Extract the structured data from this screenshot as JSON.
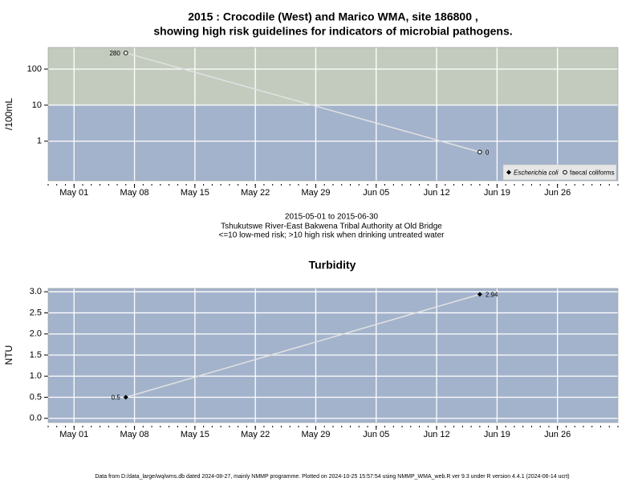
{
  "chart_data": [
    {
      "type": "line",
      "title": [
        "2015 : Crocodile (West) and Marico WMA, site 186800 ,",
        "showing high risk guidelines for indicators of microbial pathogens."
      ],
      "ylabel": "/100mL",
      "notes": [
        "2015-05-01 to 2015-06-30",
        "Tshukutswe River-East Bakwena Tribal Authority at Old Bridge",
        "<=10 low-med risk; >10 high risk when drinking untreated water"
      ],
      "x": [
        "2015-05-07",
        "2015-06-17"
      ],
      "xlim": [
        "2015-04-28",
        "2015-07-03"
      ],
      "xticks": [
        {
          "value": "2015-05-01",
          "label": "May 01"
        },
        {
          "value": "2015-05-08",
          "label": "May 08"
        },
        {
          "value": "2015-05-15",
          "label": "May 15"
        },
        {
          "value": "2015-05-22",
          "label": "May 22"
        },
        {
          "value": "2015-05-29",
          "label": "May 29"
        },
        {
          "value": "2015-06-05",
          "label": "Jun 05"
        },
        {
          "value": "2015-06-12",
          "label": "Jun 12"
        },
        {
          "value": "2015-06-19",
          "label": "Jun 19"
        },
        {
          "value": "2015-06-26",
          "label": "Jun 26"
        }
      ],
      "log_scale": true,
      "ylim": [
        0.08,
        400
      ],
      "yticks": [
        1,
        10,
        100
      ],
      "grid": true,
      "background_color": "#a3b3cc",
      "high_risk_color": "#c3cbbf",
      "risk_threshold": 10,
      "line_color": "#e2e2e2",
      "legend": "bottom-right",
      "series": [
        {
          "name": "Escherichia coli",
          "marker": "diamond",
          "color": "#000000",
          "values": [
            null,
            null
          ]
        },
        {
          "name": "faecal coliforms",
          "marker": "circle",
          "color": "#000000",
          "values": [
            280,
            0.5
          ],
          "value_labels": [
            "280",
            "0"
          ]
        }
      ]
    },
    {
      "type": "line",
      "title": "Turbidity",
      "ylabel": "NTU",
      "x": [
        "2015-05-07",
        "2015-06-17"
      ],
      "xlim": [
        "2015-04-28",
        "2015-07-03"
      ],
      "xticks": [
        {
          "value": "2015-05-01",
          "label": "May 01"
        },
        {
          "value": "2015-05-08",
          "label": "May 08"
        },
        {
          "value": "2015-05-15",
          "label": "May 15"
        },
        {
          "value": "2015-05-22",
          "label": "May 22"
        },
        {
          "value": "2015-05-29",
          "label": "May 29"
        },
        {
          "value": "2015-06-05",
          "label": "Jun 05"
        },
        {
          "value": "2015-06-12",
          "label": "Jun 12"
        },
        {
          "value": "2015-06-19",
          "label": "Jun 19"
        },
        {
          "value": "2015-06-26",
          "label": "Jun 26"
        }
      ],
      "log_scale": false,
      "ylim": [
        -0.1,
        3.08
      ],
      "yticks": [
        {
          "value": 0,
          "label": "0.0"
        },
        {
          "value": 0.5,
          "label": "0.5"
        },
        {
          "value": 1,
          "label": "1.0"
        },
        {
          "value": 1.5,
          "label": "1.5"
        },
        {
          "value": 2,
          "label": "2.0"
        },
        {
          "value": 2.5,
          "label": "2.5"
        },
        {
          "value": 3,
          "label": "3.0"
        }
      ],
      "grid": true,
      "background_color": "#a3b3cc",
      "line_color": "#e2e2e2",
      "series": [
        {
          "marker": "diamond",
          "color": "#000000",
          "values": [
            0.5,
            2.94
          ]
        }
      ]
    }
  ],
  "footer": "Data from D:/data_large/wq/wms.db dated 2024-08-27, mainly NMMP programme. Plotted on 2024-10-25 15:57:54 using NMMP_WMA_web.R ver 9.3 under R version 4.4.1 (2024-06-14 ucrt)"
}
